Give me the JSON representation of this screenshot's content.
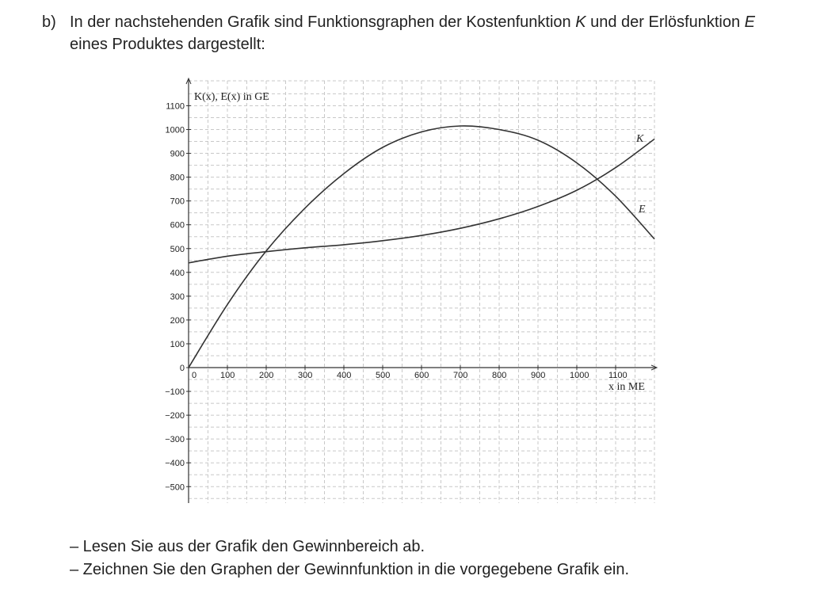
{
  "task": {
    "label": "b)",
    "intro_before_k": "In der nachstehenden Grafik sind Funktionsgraphen der Kostenfunktion ",
    "k_symbol": "K",
    "intro_between": " und der Erlös­funktion ",
    "e_symbol": "E",
    "intro_after": " eines Produktes dargestellt:",
    "bullets": [
      "– Lesen Sie aus der Grafik den Gewinnbereich ab.",
      "– Zeichnen Sie den Graphen der Gewinnfunktion in die vorgegebene Grafik ein."
    ]
  },
  "chart_data": {
    "type": "line",
    "ylabel": "K(x), E(x) in GE",
    "xlabel": "x in ME",
    "xlim": [
      0,
      1200
    ],
    "ylim": [
      -550,
      1100
    ],
    "x_ticks": [
      0,
      100,
      200,
      300,
      400,
      500,
      600,
      700,
      800,
      900,
      1000,
      1100
    ],
    "y_ticks": [
      -500,
      -400,
      -300,
      -200,
      -100,
      0,
      100,
      200,
      300,
      400,
      500,
      600,
      700,
      800,
      900,
      1000,
      1100
    ],
    "grid": true,
    "series": [
      {
        "name": "K",
        "color": "#333333",
        "x": [
          0,
          100,
          200,
          300,
          400,
          500,
          600,
          700,
          800,
          900,
          1000,
          1100,
          1200
        ],
        "y": [
          440,
          468,
          487,
          503,
          516,
          533,
          555,
          585,
          625,
          677,
          745,
          840,
          960
        ]
      },
      {
        "name": "E",
        "color": "#333333",
        "x": [
          0,
          100,
          200,
          300,
          400,
          500,
          600,
          700,
          800,
          900,
          1000,
          1100,
          1200
        ],
        "y": [
          0,
          265,
          490,
          670,
          815,
          925,
          990,
          1015,
          1000,
          955,
          860,
          720,
          540
        ]
      }
    ]
  }
}
